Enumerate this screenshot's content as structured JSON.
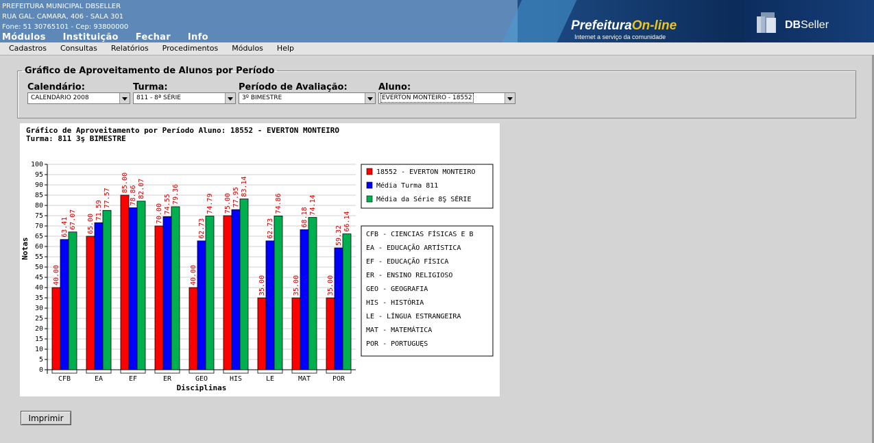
{
  "header": {
    "org_lines": [
      "PREFEITURA MUNICIPAL DBSELLER",
      "RUA GAL. CAMARA, 406 - SALA 301",
      "Fone: 51 30765101  -  Cep: 93800000"
    ],
    "top_menu": [
      "Módulos",
      "Instituição",
      "Fechar",
      "Info"
    ],
    "banner_title_a": "Prefeitura",
    "banner_title_b": "On-line",
    "banner_subtitle": "Internet a serviço da comunidade",
    "dbseller_a": "DB",
    "dbseller_b": "Seller"
  },
  "menubar": [
    "Cadastros",
    "Consultas",
    "Relatórios",
    "Procedimentos",
    "Módulos",
    "Help"
  ],
  "form": {
    "legend": "Gráfico de Aproveitamento de Alunos por Período",
    "fields": [
      {
        "label": "Calendário:",
        "value": "CALENDÁRIO 2008"
      },
      {
        "label": "Turma:",
        "value": "811 - 8ª SÉRIE"
      },
      {
        "label": "Período de Avaliação:",
        "value": "3º BIMESTRE"
      },
      {
        "label": "Aluno:",
        "value": "EVERTON MONTEIRO - 18552"
      }
    ]
  },
  "chart_data": {
    "type": "bar",
    "title_line1": "Gráfico de Aproveitamento por Período  Aluno: 18552 - EVERTON MONTEIRO",
    "title_line2": "Turma: 811  3ş BIMESTRE",
    "xlabel": "Disciplinas",
    "ylabel": "Notas",
    "ylim": [
      0,
      100
    ],
    "yticks": [
      0,
      5,
      10,
      15,
      20,
      25,
      30,
      35,
      40,
      45,
      50,
      55,
      60,
      65,
      70,
      75,
      80,
      85,
      90,
      95,
      100
    ],
    "categories": [
      "CFB",
      "EA",
      "EF",
      "ER",
      "GEO",
      "HIS",
      "LE",
      "MAT",
      "POR"
    ],
    "series": [
      {
        "name": "18552 - EVERTON MONTEIRO",
        "color": "#ff0000",
        "values": [
          40.0,
          65.0,
          85.0,
          70.0,
          40.0,
          75.0,
          35.0,
          35.0,
          35.0
        ],
        "labels": [
          "40.00",
          "65.00",
          "85.00",
          "70.00",
          "40.00",
          "75.00",
          "35.00",
          "35.00",
          "35.00"
        ]
      },
      {
        "name": "Média Turma 811",
        "color": "#0000ff",
        "values": [
          63.41,
          71.59,
          78.86,
          74.55,
          62.73,
          77.95,
          62.73,
          68.18,
          59.32
        ],
        "labels": [
          "63.41",
          "71.59",
          "78.86",
          "74.55",
          "62.73",
          "77.95",
          "62.73",
          "68.18",
          "59.32"
        ]
      },
      {
        "name": "Média da Série 8Ş SÉRIE",
        "color": "#00b050",
        "values": [
          67.07,
          77.57,
          82.07,
          79.36,
          74.79,
          83.14,
          74.86,
          74.14,
          66.14
        ],
        "labels": [
          "67.07",
          "77.57",
          "82.07",
          "79.36",
          "74.79",
          "83.14",
          "74.86",
          "74.14",
          "66.14"
        ]
      }
    ],
    "legend_position": "right",
    "abbreviations": [
      "CFB - CIENCIAS FÍSICAS E B",
      "EA - EDUCAÇÃO ARTÍSTICA",
      "EF - EDUCAÇÃO FÍSICA",
      "ER - ENSINO RELIGIOSO",
      "GEO - GEOGRAFIA",
      "HIS - HISTÓRIA",
      "LE - LÍNGUA ESTRANGEIRA",
      "MAT - MATEMÁTICA",
      "POR - PORTUGUĘS"
    ],
    "grid": true
  },
  "print_button": "Imprimir"
}
